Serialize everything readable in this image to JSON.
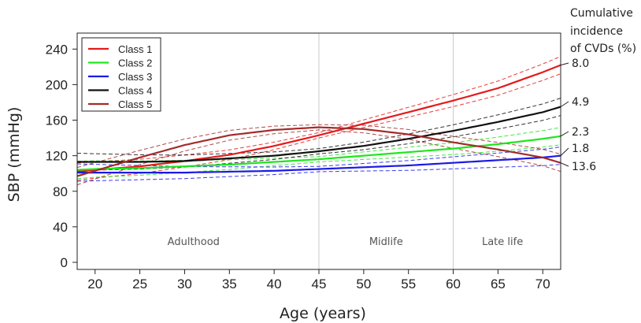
{
  "chart_data": {
    "type": "line",
    "xlabel": "Age (years)",
    "ylabel": "SBP (mmHg)",
    "xlim": [
      18,
      72
    ],
    "ylim": [
      -8,
      258
    ],
    "xticks": [
      20,
      25,
      30,
      35,
      40,
      45,
      50,
      55,
      60,
      65,
      70
    ],
    "yticks": [
      0,
      40,
      80,
      120,
      160,
      200,
      240
    ],
    "vlines": [
      45,
      60
    ],
    "grid": false,
    "legend_position": "top-left",
    "annotation_title": [
      "Cumulative",
      "incidence",
      "of CVDs (%)"
    ],
    "periods": [
      {
        "label": "Adulthood",
        "x": 31
      },
      {
        "label": "Midlife",
        "x": 52.5
      },
      {
        "label": "Late life",
        "x": 65.5
      }
    ],
    "x": [
      18,
      20,
      25,
      30,
      35,
      40,
      45,
      50,
      55,
      60,
      65,
      70,
      72
    ],
    "series": [
      {
        "name": "Class 1",
        "color": "#e41a1c",
        "end_label": "8.0",
        "values": [
          102,
          104,
          108,
          114,
          121,
          131,
          143,
          156,
          169,
          182,
          196,
          214,
          222
        ]
      },
      {
        "name": "Class 2",
        "color": "#1ee61e",
        "end_label": "2.3",
        "values": [
          104,
          105,
          106,
          108,
          110,
          113,
          116,
          120,
          124,
          128,
          133,
          139,
          142
        ]
      },
      {
        "name": "Class 3",
        "color": "#1a1ae6",
        "end_label": "1.8",
        "values": [
          101,
          101,
          101,
          101,
          102,
          103,
          105,
          107,
          109,
          112,
          115,
          118,
          120
        ]
      },
      {
        "name": "Class 4",
        "color": "#111111",
        "end_label": "4.9",
        "values": [
          113,
          113,
          113,
          114,
          117,
          120,
          125,
          131,
          139,
          148,
          158,
          169,
          175
        ]
      },
      {
        "name": "Class 5",
        "color": "#a52a2a",
        "end_label": "13.6",
        "values": [
          97,
          103,
          118,
          132,
          143,
          149,
          152,
          150,
          144,
          135,
          127,
          118,
          112
        ]
      }
    ]
  }
}
